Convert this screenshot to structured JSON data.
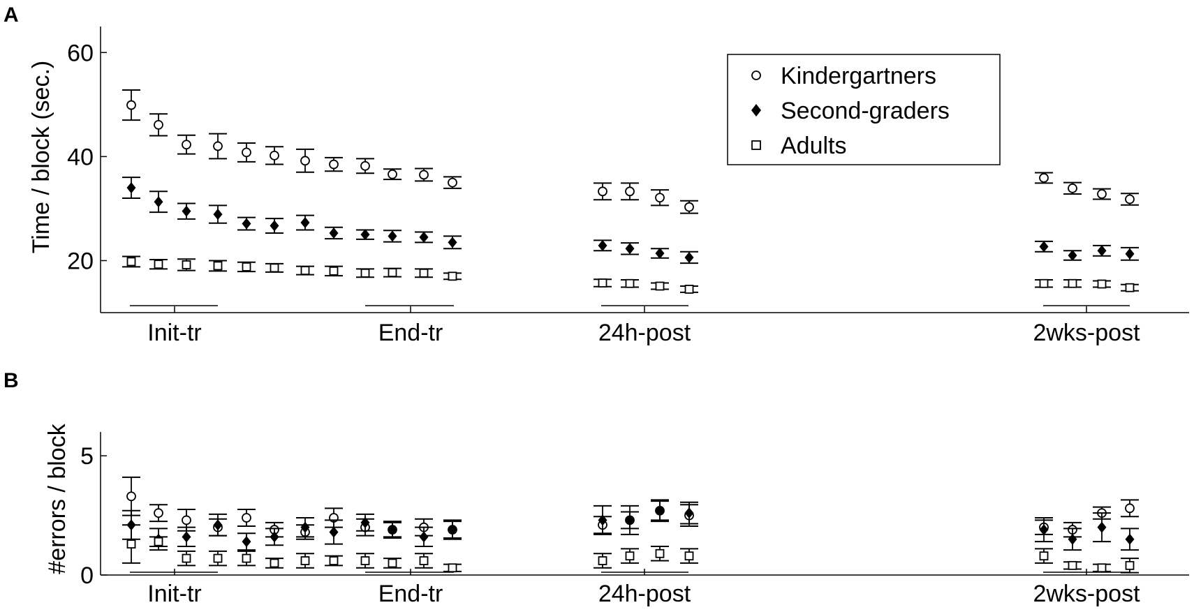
{
  "panel_labels": [
    "A",
    "B"
  ],
  "chart_data": [
    {
      "type": "scatter",
      "panel": "A",
      "ylabel": "Time / block (sec.)",
      "ylim": [
        10,
        65
      ],
      "yticks": [
        20,
        40,
        60
      ],
      "categories": [
        "Init-tr",
        "End-tr",
        "24h-post",
        "2wks-post"
      ],
      "legend": {
        "placement": "top-right",
        "entries": [
          "Kindergartners",
          "Second-graders",
          "Adults"
        ]
      },
      "series": [
        {
          "name": "Kindergartners",
          "marker": "circle-open",
          "values": [
            49.9,
            46.1,
            42.3,
            42.0,
            40.8,
            40.2,
            39.2,
            38.5,
            38.2,
            36.6,
            36.5,
            35.0,
            33.3,
            33.3,
            32.1,
            30.3,
            35.9,
            33.9,
            32.8,
            31.8
          ],
          "errors": [
            2.9,
            2.1,
            1.8,
            2.4,
            1.8,
            1.7,
            2.2,
            1.3,
            1.4,
            1.0,
            1.2,
            1.1,
            1.6,
            1.6,
            1.5,
            1.2,
            1.0,
            1.1,
            1.0,
            1.1
          ]
        },
        {
          "name": "Second-graders",
          "marker": "diamond-filled",
          "values": [
            34.0,
            31.3,
            29.5,
            28.9,
            27.1,
            26.7,
            27.3,
            25.3,
            25.0,
            24.7,
            24.5,
            23.5,
            22.9,
            22.3,
            21.4,
            20.6,
            22.7,
            21.0,
            21.9,
            21.3
          ],
          "errors": [
            2.0,
            2.0,
            1.5,
            1.7,
            1.2,
            1.4,
            1.4,
            1.1,
            0.9,
            1.1,
            1.0,
            1.2,
            1.0,
            1.1,
            0.9,
            1.1,
            1.0,
            0.9,
            1.0,
            1.2
          ]
        },
        {
          "name": "Adults",
          "marker": "square-open",
          "values": [
            19.8,
            19.3,
            19.2,
            19.0,
            18.8,
            18.6,
            18.1,
            18.0,
            17.6,
            17.7,
            17.6,
            17.0,
            15.7,
            15.6,
            15.1,
            14.5,
            15.6,
            15.6,
            15.5,
            14.8
          ],
          "errors": [
            1.0,
            0.9,
            1.1,
            1.0,
            0.9,
            0.8,
            0.8,
            0.9,
            0.8,
            0.8,
            0.8,
            0.6,
            0.7,
            0.7,
            0.6,
            0.6,
            0.7,
            0.7,
            0.6,
            0.6
          ]
        }
      ]
    },
    {
      "type": "scatter",
      "panel": "B",
      "ylabel": "#errors / block",
      "ylim": [
        0,
        6
      ],
      "yticks": [
        0,
        5
      ],
      "categories": [
        "Init-tr",
        "End-tr",
        "24h-post",
        "2wks-post"
      ],
      "series": [
        {
          "name": "Kindergartners",
          "marker": "circle-open",
          "values": [
            3.3,
            2.6,
            2.3,
            2.0,
            2.4,
            1.9,
            1.8,
            2.4,
            2.0,
            1.9,
            2.0,
            1.9,
            2.1,
            2.3,
            2.7,
            2.5,
            2.0,
            1.9,
            2.6,
            2.8
          ],
          "errors": [
            0.8,
            0.35,
            0.45,
            0.35,
            0.35,
            0.3,
            0.3,
            0.4,
            0.35,
            0.3,
            0.35,
            0.35,
            0.35,
            0.35,
            0.4,
            0.45,
            0.3,
            0.3,
            0.25,
            0.35
          ]
        },
        {
          "name": "Second-graders",
          "marker": "diamond-filled",
          "values": [
            2.1,
            1.5,
            1.6,
            2.1,
            1.4,
            1.6,
            2.0,
            1.8,
            2.2,
            1.9,
            1.6,
            1.9,
            2.3,
            2.3,
            2.7,
            2.6,
            1.9,
            1.5,
            2.0,
            1.5
          ],
          "errors": [
            0.6,
            0.45,
            0.4,
            0.45,
            0.35,
            0.35,
            0.4,
            0.5,
            0.35,
            0.35,
            0.4,
            0.4,
            0.6,
            0.6,
            0.45,
            0.45,
            0.5,
            0.45,
            0.6,
            0.45
          ]
        },
        {
          "name": "Adults",
          "marker": "square-open",
          "values": [
            1.3,
            1.4,
            0.7,
            0.7,
            0.7,
            0.5,
            0.6,
            0.6,
            0.6,
            0.5,
            0.6,
            0.3,
            0.6,
            0.8,
            0.9,
            0.8,
            0.8,
            0.4,
            0.3,
            0.4
          ],
          "errors": [
            0.8,
            0.2,
            0.3,
            0.3,
            0.3,
            0.2,
            0.3,
            0.2,
            0.3,
            0.2,
            0.3,
            0.15,
            0.3,
            0.3,
            0.3,
            0.3,
            0.3,
            0.15,
            0.15,
            0.3
          ]
        }
      ]
    }
  ]
}
